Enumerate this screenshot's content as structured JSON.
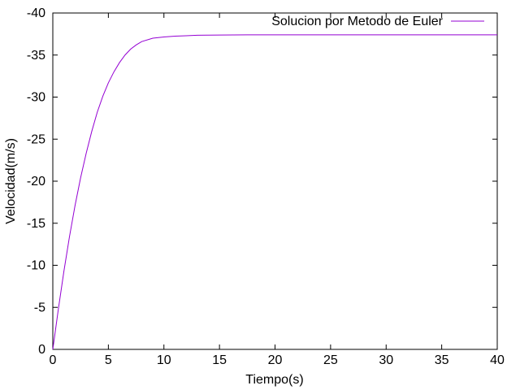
{
  "chart_data": {
    "type": "line",
    "title": "",
    "xlabel": "Tiempo(s)",
    "ylabel": "Velocidad(m/s)",
    "xlim": [
      0,
      40
    ],
    "ylim": [
      0,
      -40
    ],
    "y_axis_inverted": true,
    "grid": false,
    "legend_position": "top-right",
    "x_ticks": [
      "0",
      "5",
      "10",
      "15",
      "20",
      "25",
      "30",
      "35",
      "40"
    ],
    "y_ticks": [
      "0",
      "-5",
      "-10",
      "-15",
      "-20",
      "-25",
      "-30",
      "-35",
      "-40"
    ],
    "series": [
      {
        "name": "Solucion por Metodo de Euler",
        "color": "#9400d3",
        "x": [
          0,
          0.5,
          1,
          1.5,
          2,
          2.5,
          3,
          3.5,
          4,
          4.5,
          5,
          5.5,
          6,
          6.5,
          7,
          7.5,
          8,
          9,
          10,
          11,
          12,
          13,
          14,
          15,
          17.5,
          20,
          25,
          30,
          35,
          40
        ],
        "y": [
          0,
          -4.8,
          -9.3,
          -13.4,
          -17.1,
          -20.4,
          -23.3,
          -25.9,
          -28.2,
          -30.1,
          -31.7,
          -33.0,
          -34.1,
          -35.0,
          -35.7,
          -36.2,
          -36.6,
          -37.0,
          -37.15,
          -37.25,
          -37.3,
          -37.35,
          -37.37,
          -37.38,
          -37.4,
          -37.4,
          -37.4,
          -37.4,
          -37.4,
          -37.4
        ]
      }
    ]
  }
}
